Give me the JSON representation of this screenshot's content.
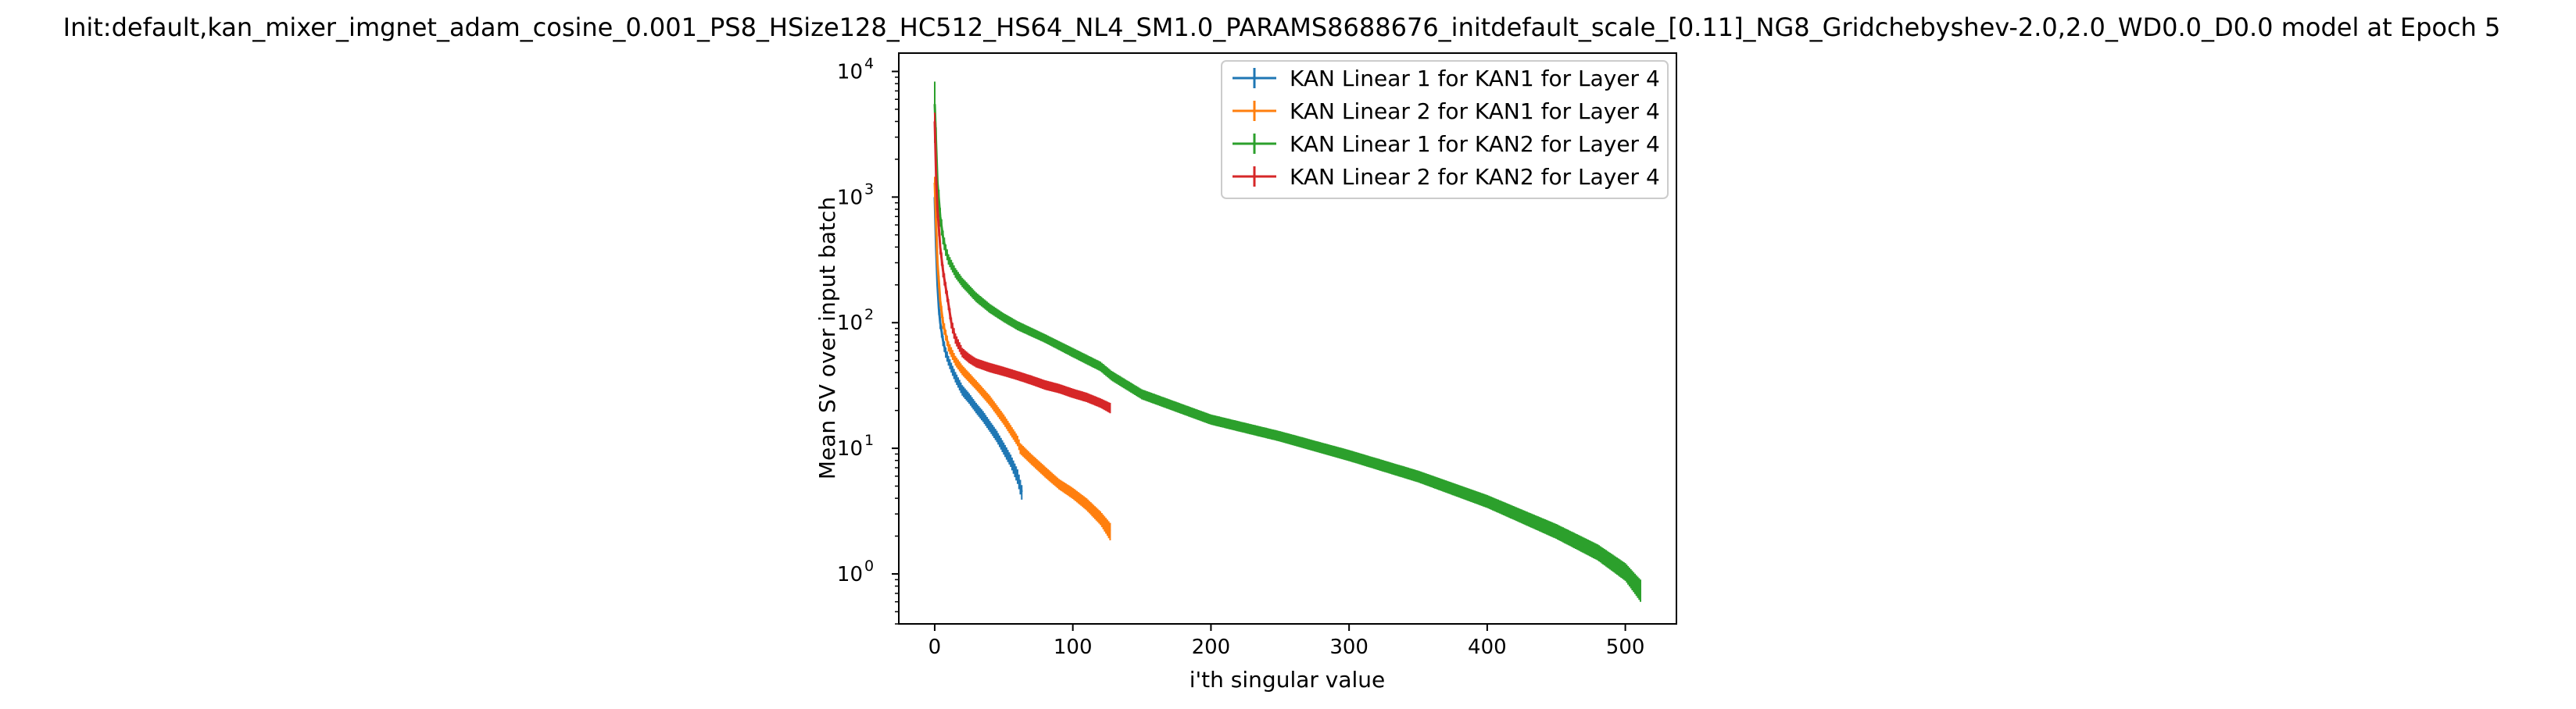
{
  "chart_data": {
    "type": "line",
    "title": "Init:default,kan_mixer_imgnet_adam_cosine_0.001_PS8_HSize128_HC512_HS64_NL4_SM1.0_PARAMS8688676_initdefault_scale_[0.11]_NG8_Gridchebyshev-2.0,2.0_WD0.0_D0.0 model at Epoch 5",
    "xlabel": "i'th singular value",
    "ylabel": "Mean SV over input batch",
    "xlim": [
      -26,
      537
    ],
    "ylim": [
      0.4,
      14000
    ],
    "yscale": "log",
    "grid": false,
    "legend_position": "top-right",
    "error_bars": true,
    "x_ticks": [
      {
        "value": 0,
        "label": "0"
      },
      {
        "value": 100,
        "label": "100"
      },
      {
        "value": 200,
        "label": "200"
      },
      {
        "value": 300,
        "label": "300"
      },
      {
        "value": 400,
        "label": "400"
      },
      {
        "value": 500,
        "label": "500"
      }
    ],
    "y_ticks": [
      {
        "value": 1,
        "base": "10",
        "exp": "0"
      },
      {
        "value": 10,
        "base": "10",
        "exp": "1"
      },
      {
        "value": 100,
        "base": "10",
        "exp": "2"
      },
      {
        "value": 1000,
        "base": "10",
        "exp": "3"
      },
      {
        "value": 10000,
        "base": "10",
        "exp": "4"
      }
    ],
    "series": [
      {
        "name": "KAN Linear 1 for KAN1 for Layer 4",
        "color": "#1f77b4",
        "x": [
          0,
          1,
          2,
          3,
          4,
          5,
          6,
          8,
          10,
          12,
          15,
          20,
          25,
          30,
          35,
          40,
          45,
          50,
          55,
          60,
          63
        ],
        "y": [
          1000,
          400,
          200,
          130,
          100,
          85,
          72,
          58,
          50,
          44,
          37,
          29,
          25,
          21,
          18,
          15,
          12.5,
          10,
          8,
          6,
          4.5
        ],
        "err": [
          120,
          50,
          25,
          15,
          11,
          9,
          7,
          5.5,
          4.5,
          4,
          3.5,
          2.8,
          2.4,
          2,
          1.8,
          1.5,
          1.3,
          1.1,
          0.9,
          0.8,
          0.6
        ]
      },
      {
        "name": "KAN Linear 2 for KAN1 for Layer 4",
        "color": "#ff7f0e",
        "x": [
          0,
          2,
          4,
          6,
          8,
          10,
          15,
          20,
          30,
          40,
          50,
          60,
          62,
          70,
          80,
          90,
          100,
          110,
          120,
          127
        ],
        "y": [
          1300,
          300,
          150,
          100,
          80,
          65,
          50,
          42,
          32,
          24,
          17,
          11.5,
          10,
          8.2,
          6.5,
          5.2,
          4.4,
          3.6,
          2.8,
          2.2
        ],
        "err": [
          150,
          35,
          16,
          11,
          8,
          6,
          4.5,
          3.8,
          2.8,
          2.2,
          1.6,
          1.1,
          1,
          0.8,
          0.65,
          0.5,
          0.45,
          0.4,
          0.35,
          0.35
        ]
      },
      {
        "name": "KAN Linear 1 for KAN2 for Layer 4",
        "color": "#2ca02c",
        "x": [
          0,
          2,
          4,
          6,
          8,
          10,
          15,
          20,
          30,
          40,
          50,
          60,
          80,
          100,
          120,
          128,
          150,
          200,
          250,
          300,
          350,
          400,
          450,
          480,
          500,
          511
        ],
        "y": [
          5500,
          1300,
          700,
          480,
          380,
          320,
          250,
          210,
          160,
          130,
          110,
          95,
          75,
          58,
          45,
          38,
          27,
          17,
          12.5,
          8.8,
          6,
          3.8,
          2.2,
          1.5,
          1.05,
          0.75
        ],
        "err": [
          2800,
          300,
          120,
          60,
          40,
          30,
          22,
          18,
          14,
          11,
          9,
          8,
          6,
          5,
          4,
          3.4,
          2.5,
          1.6,
          1.2,
          0.9,
          0.65,
          0.45,
          0.3,
          0.22,
          0.17,
          0.15
        ]
      },
      {
        "name": "KAN Linear 2 for KAN2 for Layer 4",
        "color": "#d62728",
        "x": [
          0,
          1,
          2,
          4,
          6,
          8,
          10,
          12,
          15,
          20,
          25,
          30,
          40,
          50,
          60,
          70,
          80,
          90,
          100,
          110,
          120,
          127
        ],
        "y": [
          4000,
          1500,
          800,
          400,
          260,
          190,
          140,
          100,
          75,
          58,
          52,
          48,
          44,
          41,
          38,
          35,
          32,
          30,
          27.5,
          25.5,
          23,
          21
        ],
        "err": [
          700,
          250,
          120,
          50,
          30,
          20,
          14,
          10,
          7,
          5,
          4.5,
          4,
          3.8,
          3.5,
          3.2,
          3,
          2.8,
          2.6,
          2.4,
          2.2,
          2,
          2
        ]
      }
    ]
  }
}
